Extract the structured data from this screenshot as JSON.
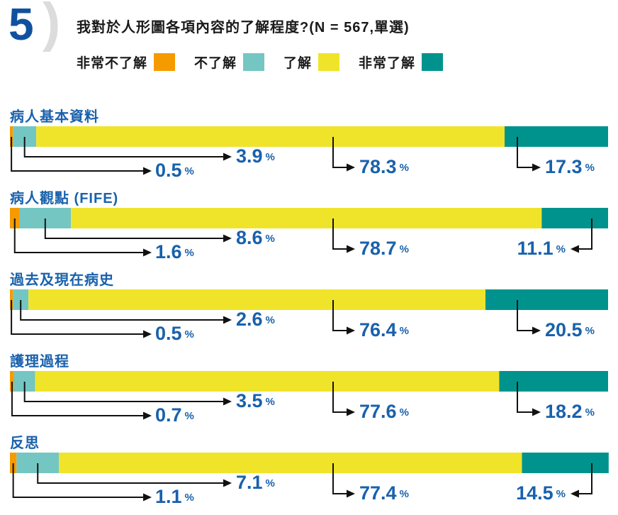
{
  "header": {
    "number": "5",
    "paren": ")",
    "title": "我對於人形圖各項內容的了解程度?(N = 567,單選)"
  },
  "legend": [
    {
      "label": "非常不了解",
      "color": "#F59B00"
    },
    {
      "label": "不了解",
      "color": "#74C6C3"
    },
    {
      "label": "了解",
      "color": "#F0E42A"
    },
    {
      "label": "非常了解",
      "color": "#00938D"
    }
  ],
  "colors": {
    "label_blue": "#1961AC",
    "number_blue": "#10519F",
    "paren_gray": "#DCDCDC",
    "leader_black": "#111111"
  },
  "chart_data": {
    "type": "bar",
    "orientation": "horizontal-stacked",
    "title": "我對於人形圖各項內容的了解程度?(N = 567,單選)",
    "sample_note": "N = 567,單選",
    "unit": "%",
    "xlim": [
      0,
      100
    ],
    "grid": false,
    "legend_position": "top",
    "categories": [
      "病人基本資料",
      "病人觀點 (FIFE)",
      "過去及現在病史",
      "護理過程",
      "反思"
    ],
    "series": [
      {
        "name": "非常不了解",
        "color": "#F59B00",
        "values": [
          0.5,
          1.6,
          0.5,
          0.7,
          1.1
        ]
      },
      {
        "name": "不了解",
        "color": "#74C6C3",
        "values": [
          3.9,
          8.6,
          2.6,
          3.5,
          7.1
        ]
      },
      {
        "name": "了解",
        "color": "#F0E42A",
        "values": [
          78.3,
          78.7,
          76.4,
          77.6,
          77.4
        ]
      },
      {
        "name": "非常了解",
        "color": "#00938D",
        "values": [
          17.3,
          11.1,
          20.5,
          18.2,
          14.5
        ]
      }
    ]
  }
}
